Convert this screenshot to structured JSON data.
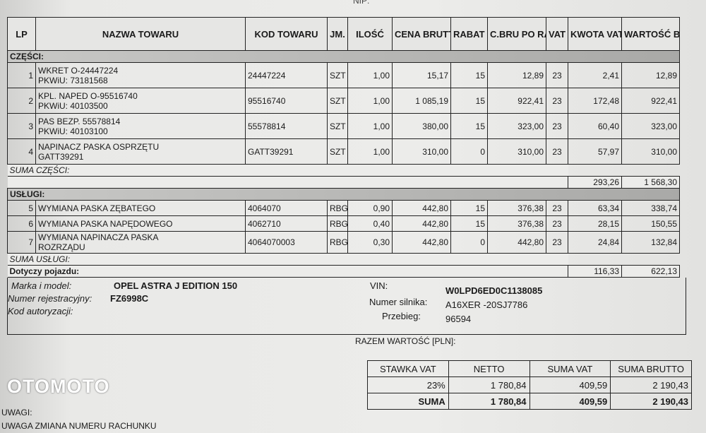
{
  "nip_label": "NIP:",
  "columns": [
    "LP",
    "NAZWA TOWARU",
    "KOD TOWARU",
    "JM.",
    "ILOŚĆ",
    "CENA BRUTTO",
    "RABAT %",
    "C.BRU PO RABACIE",
    "VAT %",
    "KWOTA VAT",
    "WARTOŚĆ BRUTTO"
  ],
  "parts": {
    "label": "CZĘŚCI:",
    "rows": [
      {
        "lp": "1",
        "name": "WKRET O-24447224",
        "sub": "PKWiU: 73181568",
        "code": "24447224",
        "unit": "SZT",
        "qty": "1,00",
        "price": "15,17",
        "discount": "15",
        "price_after": "12,89",
        "vat": "23",
        "vat_amount": "2,41",
        "gross": "12,89"
      },
      {
        "lp": "2",
        "name": "KPL. NAPED O-95516740",
        "sub": "PKWiU: 40103500",
        "code": "95516740",
        "unit": "SZT",
        "qty": "1,00",
        "price": "1 085,19",
        "discount": "15",
        "price_after": "922,41",
        "vat": "23",
        "vat_amount": "172,48",
        "gross": "922,41"
      },
      {
        "lp": "3",
        "name": "PAS BEZP. 55578814",
        "sub": "PKWiU: 40103100",
        "code": "55578814",
        "unit": "SZT",
        "qty": "1,00",
        "price": "380,00",
        "discount": "15",
        "price_after": "323,00",
        "vat": "23",
        "vat_amount": "60,40",
        "gross": "323,00"
      },
      {
        "lp": "4",
        "name": "NAPINACZ PASKA OSPRZĘTU",
        "sub": "GATT39291",
        "code": "GATT39291",
        "unit": "SZT",
        "qty": "1,00",
        "price": "310,00",
        "discount": "0",
        "price_after": "310,00",
        "vat": "23",
        "vat_amount": "57,97",
        "gross": "310,00"
      }
    ],
    "sum_label": "SUMA CZĘŚCI:",
    "sum_vat": "293,26",
    "sum_gross": "1 568,30"
  },
  "services": {
    "label": "USŁUGI:",
    "rows": [
      {
        "lp": "5",
        "name": "WYMIANA PASKA ZĘBATEGO",
        "sub": "",
        "code": "4064070",
        "unit": "RBG",
        "qty": "0,90",
        "price": "442,80",
        "discount": "15",
        "price_after": "376,38",
        "vat": "23",
        "vat_amount": "63,34",
        "gross": "338,74"
      },
      {
        "lp": "6",
        "name": "WYMIANA PASKA NAPĘDOWEGO",
        "sub": "",
        "code": "4062710",
        "unit": "RBG",
        "qty": "0,40",
        "price": "442,80",
        "discount": "15",
        "price_after": "376,38",
        "vat": "23",
        "vat_amount": "28,15",
        "gross": "150,55"
      },
      {
        "lp": "7",
        "name": "WYMIANA NAPINACZA PASKA",
        "sub": "ROZRZĄDU",
        "code": "4064070003",
        "unit": "RBG",
        "qty": "0,30",
        "price": "442,80",
        "discount": "0",
        "price_after": "442,80",
        "vat": "23",
        "vat_amount": "24,84",
        "gross": "132,84"
      }
    ],
    "sum_label": "SUMA USŁUGI:",
    "sum_vat": "116,33",
    "sum_gross": "622,13"
  },
  "vehicle": {
    "heading": "Dotyczy pojazdu:",
    "make_label": "Marka i model:",
    "make": "OPEL ASTRA J EDITION 150",
    "reg_label": "Numer rejestracyjny:",
    "reg": "FZ6998C",
    "auth_label": "Kod autoryzacji:",
    "vin_label": "VIN:",
    "vin": "W0LPD6ED0C1138085",
    "engine_label": "Numer silnika:",
    "engine": "A16XER -20SJ7786",
    "mileage_label": "Przebieg:",
    "mileage": "96594"
  },
  "total_label": "RAZEM WARTOŚĆ [PLN]:",
  "vat_summary": {
    "headers": [
      "STAWKA VAT",
      "NETTO",
      "SUMA VAT",
      "SUMA BRUTTO"
    ],
    "rate_row": [
      "23%",
      "1 780,84",
      "409,59",
      "2 190,43"
    ],
    "sum_row": [
      "SUMA",
      "1 780,84",
      "409,59",
      "2 190,43"
    ]
  },
  "notes_label": "UWAGI:",
  "notes_text": "UWAGA ZMIANA NUMERU RACHUNKU",
  "watermark": "OTOMOTO"
}
